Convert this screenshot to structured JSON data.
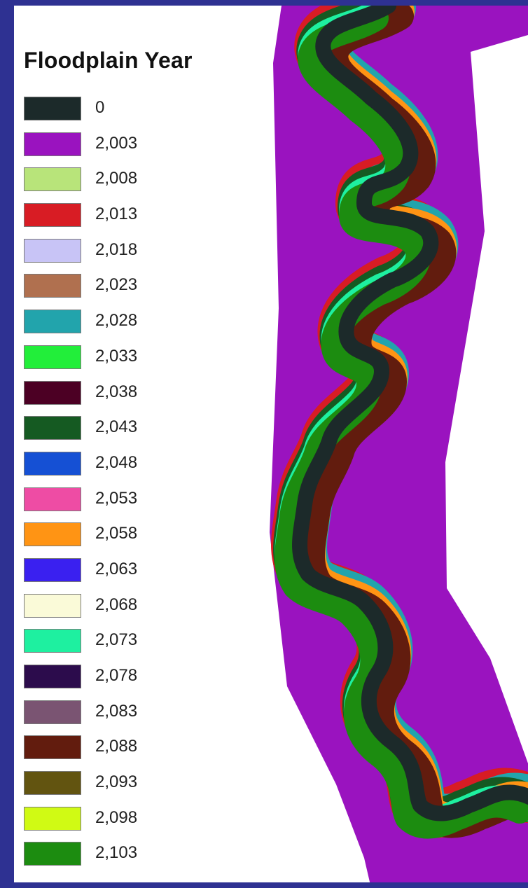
{
  "header": {
    "title_fragment": ""
  },
  "legend": {
    "title": "Floodplain Year",
    "items": [
      {
        "label": "0",
        "color": "#1c2a2a"
      },
      {
        "label": "2,003",
        "color": "#9a13bf"
      },
      {
        "label": "2,008",
        "color": "#b8e47a"
      },
      {
        "label": "2,013",
        "color": "#d81c24"
      },
      {
        "label": "2,018",
        "color": "#c8c4f6"
      },
      {
        "label": "2,023",
        "color": "#b0704f"
      },
      {
        "label": "2,028",
        "color": "#22a4ac"
      },
      {
        "label": "2,033",
        "color": "#22ee3a"
      },
      {
        "label": "2,038",
        "color": "#4c0024"
      },
      {
        "label": "2,043",
        "color": "#155a22"
      },
      {
        "label": "2,048",
        "color": "#1550d4"
      },
      {
        "label": "2,053",
        "color": "#ee4ca4"
      },
      {
        "label": "2,058",
        "color": "#ff9414"
      },
      {
        "label": "2,063",
        "color": "#3a20f0"
      },
      {
        "label": "2,068",
        "color": "#fafad8"
      },
      {
        "label": "2,073",
        "color": "#1ef0a0"
      },
      {
        "label": "2,078",
        "color": "#2c0c4c"
      },
      {
        "label": "2,083",
        "color": "#7a5472"
      },
      {
        "label": "2,088",
        "color": "#621c0e"
      },
      {
        "label": "2,093",
        "color": "#625410"
      },
      {
        "label": "2,098",
        "color": "#d0fa14"
      },
      {
        "label": "2,103",
        "color": "#1c8c10"
      }
    ]
  },
  "map": {
    "floodplain_color": "#9a13bf",
    "channel_color": "#1c2a2a",
    "background_color": "#ffffff"
  }
}
